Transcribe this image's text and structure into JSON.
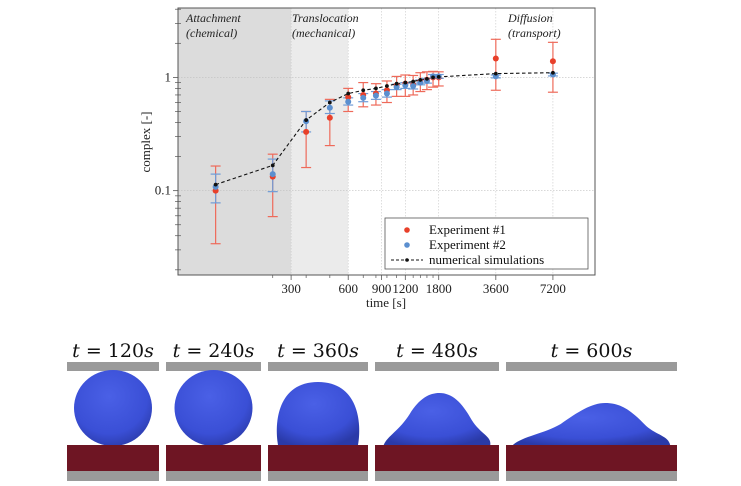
{
  "chart_data": {
    "type": "scatter",
    "xscale": "log2",
    "yscale": "log10",
    "xlabel": "time [s]",
    "ylabel": "complex [-]",
    "xlim": [
      76,
      12000
    ],
    "ylim": [
      0.018,
      4.1
    ],
    "x_ticks": [
      300,
      600,
      900,
      1200,
      1800,
      3600,
      7200
    ],
    "x_tick_labels": [
      "300",
      "600",
      "900",
      "1200",
      "1800",
      "3600",
      "7200"
    ],
    "y_ticks": [
      0.1,
      1
    ],
    "y_tick_labels": [
      "0.1",
      "1"
    ],
    "grid": true,
    "legend_position": "bottom-right",
    "regions": [
      {
        "name": "attachment",
        "label_line1": "Attachment",
        "label_line2": "(chemical)",
        "x_range": [
          76,
          300
        ],
        "color": "#dcdcdc"
      },
      {
        "name": "translocation",
        "label_line1": "Translocation",
        "label_line2": "(mechanical)",
        "x_range": [
          300,
          600
        ],
        "color": "#ebebeb"
      },
      {
        "name": "diffusion",
        "label_line1": "Diffusion",
        "label_line2": "(transport)",
        "x_range": [
          600,
          12000
        ],
        "color": "#ffffff"
      }
    ],
    "series": [
      {
        "name": "Experiment #1",
        "color": "#e8402a",
        "errcolor": "#ee6a5a",
        "x": [
          120,
          240,
          360,
          480,
          600,
          720,
          840,
          960,
          1080,
          1200,
          1320,
          1440,
          1560,
          1680,
          1800,
          3600,
          7200
        ],
        "y": [
          0.1,
          0.133,
          0.33,
          0.44,
          0.67,
          0.7,
          0.72,
          0.77,
          0.85,
          0.88,
          0.86,
          0.92,
          0.95,
          1.0,
          1.0,
          1.47,
          1.39
        ],
        "ylow": [
          0.034,
          0.059,
          0.16,
          0.25,
          0.5,
          0.55,
          0.57,
          0.6,
          0.68,
          0.68,
          0.7,
          0.75,
          0.78,
          0.82,
          0.84,
          0.77,
          0.74
        ],
        "yhigh": [
          0.165,
          0.21,
          0.5,
          0.64,
          0.8,
          0.9,
          0.88,
          0.93,
          1.02,
          1.05,
          1.04,
          1.1,
          1.12,
          1.13,
          1.12,
          2.17,
          2.04
        ]
      },
      {
        "name": "Experiment #2",
        "color": "#5b8fcf",
        "errcolor": "#6f9bd6",
        "x": [
          120,
          240,
          360,
          480,
          600,
          720,
          840,
          960,
          1080,
          1200,
          1320,
          1440,
          1560,
          1680,
          1800,
          3600,
          7200
        ],
        "y": [
          0.108,
          0.14,
          0.41,
          0.54,
          0.61,
          0.66,
          0.69,
          0.72,
          0.82,
          0.85,
          0.84,
          0.9,
          0.93,
          1.02,
          1.02,
          1.02,
          1.06
        ],
        "ylow": [
          0.078,
          0.098,
          0.33,
          0.48,
          0.57,
          0.61,
          0.64,
          0.67,
          0.78,
          0.8,
          0.79,
          0.86,
          0.89,
          0.98,
          0.98,
          0.99,
          1.03
        ],
        "yhigh": [
          0.14,
          0.19,
          0.5,
          0.62,
          0.66,
          0.72,
          0.75,
          0.78,
          0.87,
          0.9,
          0.89,
          0.95,
          0.98,
          1.06,
          1.06,
          1.05,
          1.09
        ]
      },
      {
        "name": "numerical simulations",
        "color": "#111111",
        "style": "dashed",
        "x": [
          120,
          240,
          360,
          480,
          600,
          720,
          840,
          960,
          1080,
          1200,
          1320,
          1440,
          1560,
          1680,
          1800,
          3600,
          7200
        ],
        "y": [
          0.113,
          0.167,
          0.42,
          0.6,
          0.72,
          0.77,
          0.8,
          0.84,
          0.88,
          0.9,
          0.92,
          0.95,
          0.97,
          1.0,
          1.01,
          1.08,
          1.1
        ]
      }
    ]
  },
  "snapshots": [
    {
      "label_t": "t",
      "label_eq": "=",
      "label_val": "120s",
      "shape": "sphere"
    },
    {
      "label_t": "t",
      "label_eq": "=",
      "label_val": "240s",
      "shape": "sphere"
    },
    {
      "label_t": "t",
      "label_eq": "=",
      "label_val": "360s",
      "shape": "truncated-sphere"
    },
    {
      "label_t": "t",
      "label_eq": "=",
      "label_val": "480s",
      "shape": "dome"
    },
    {
      "label_t": "t",
      "label_eq": "=",
      "label_val": "600s",
      "shape": "spread"
    }
  ],
  "colors": {
    "cell": "#3a4fd6",
    "cell_dark": "#2a3aa8",
    "substrate": "#6e1523",
    "plate": "#9a9a9a"
  }
}
